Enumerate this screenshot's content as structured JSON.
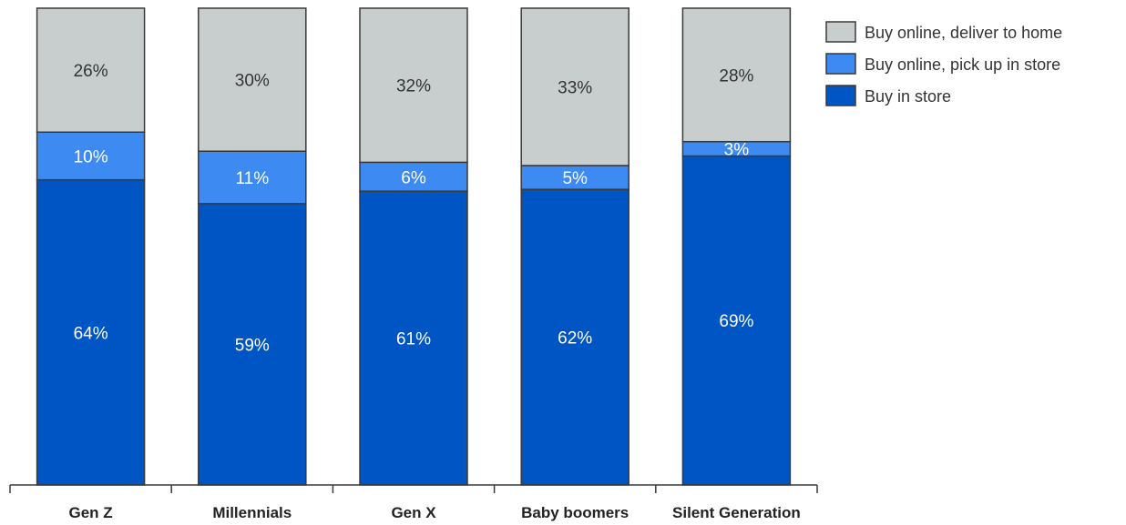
{
  "chart_data": {
    "type": "bar",
    "stacked": true,
    "normalized": true,
    "categories": [
      "Gen Z",
      "Millennials",
      "Gen X",
      "Baby boomers",
      "Silent Generation"
    ],
    "series": [
      {
        "name": "Buy in store",
        "values": [
          64,
          59,
          61,
          62,
          69
        ],
        "labels": [
          "64%",
          "59%",
          "61%",
          "62%",
          "69%"
        ],
        "color": "#0055C4",
        "text_color": "#ffffff"
      },
      {
        "name": "Buy online, pick up in store",
        "values": [
          10,
          11,
          6,
          5,
          3
        ],
        "labels": [
          "10%",
          "11%",
          "6%",
          "5%",
          "3%"
        ],
        "color": "#3D8BF2",
        "text_color": "#ffffff"
      },
      {
        "name": "Buy online, deliver to home",
        "values": [
          26,
          30,
          32,
          33,
          28
        ],
        "labels": [
          "26%",
          "30%",
          "32%",
          "33%",
          "28%"
        ],
        "color": "#C8CECD",
        "text_color": "#333333"
      }
    ],
    "legend_position": "top-right",
    "grid": false,
    "title": "",
    "xlabel": "",
    "ylabel": ""
  }
}
